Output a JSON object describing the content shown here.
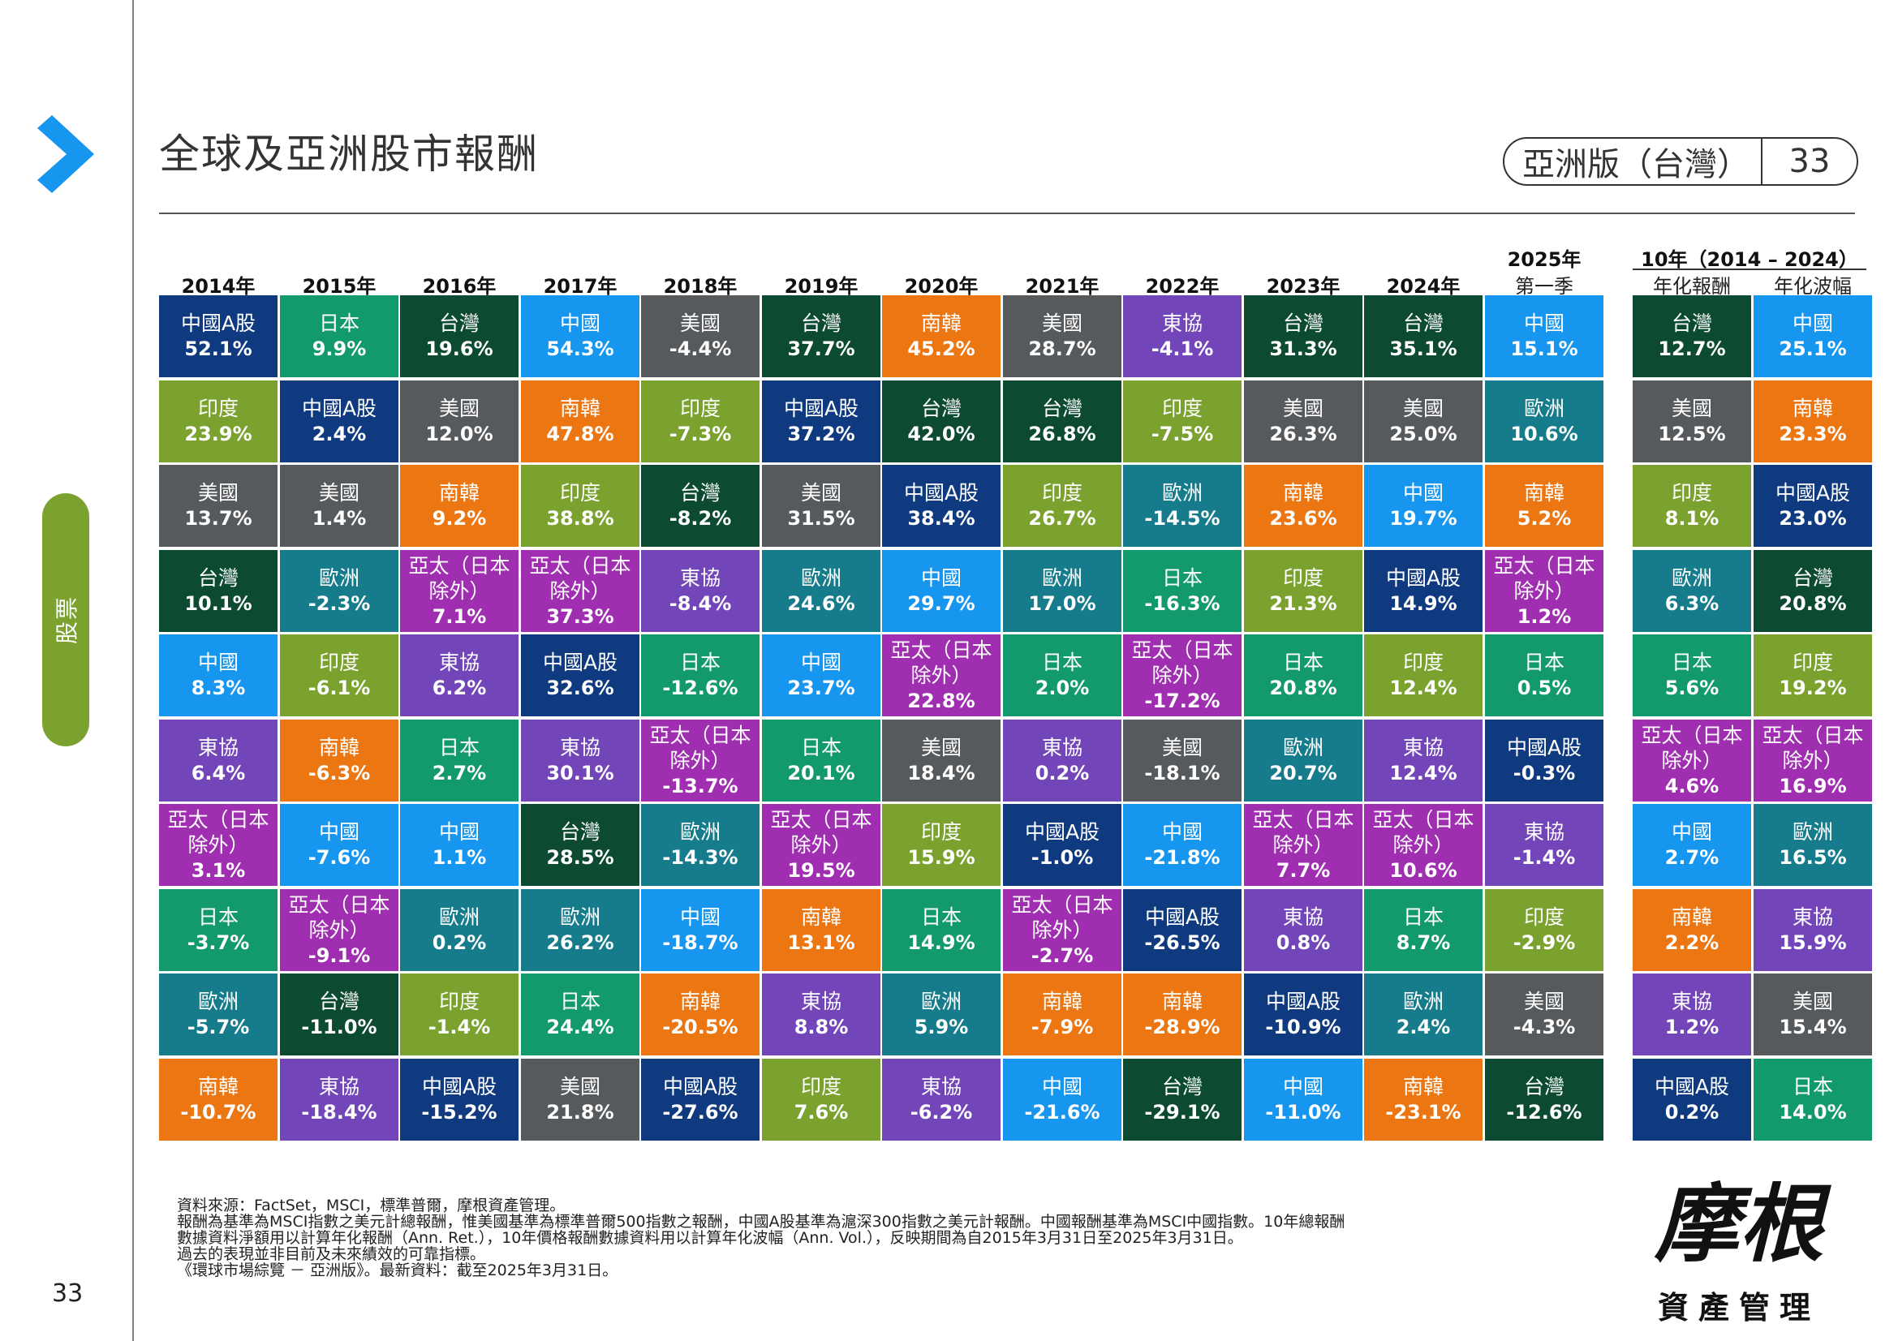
{
  "page": {
    "title": "全球及亞洲股市報酬",
    "edition": "亞洲版（台灣）",
    "page_number": "33",
    "section": "股票"
  },
  "brand": {
    "logo_name": "摩根",
    "logo_sub": "資產管理"
  },
  "footnotes": [
    "資料來源：FactSet，MSCI，標準普爾，摩根資產管理。",
    "報酬為基準為MSCI指數之美元計總報酬，惟美國基準為標準普爾500指數之報酬，中國A股基準為滬深300指數之美元計報酬。中國報酬基準為MSCI中國指數。10年總報酬",
    "數據資料淨額用以計算年化報酬（Ann. Ret.），10年價格報酬數據資料用以計算年化波幅（Ann. Vol.），反映期間為自2015年3月31日至2025年3月31日。",
    "過去的表現並非目前及未來績效的可靠指標。",
    "《環球市場綜覽 － 亞洲版》。最新資料：截至2025年3月31日。"
  ],
  "colors": {
    "中國A股": "#0f3a80",
    "日本": "#139a6c",
    "台灣": "#0c4a32",
    "中國": "#1796f0",
    "美國": "#575a5d",
    "南韓": "#ec7712",
    "東協": "#7245b8",
    "印度": "#7ba22f",
    "歐洲": "#167c8c",
    "亞太（日本除外）": "#a02eb0"
  },
  "chart_data": {
    "type": "table",
    "title": "全球及亞洲股市報酬",
    "columns": [
      {
        "label": "2014年",
        "cells": [
          {
            "market": "中國A股",
            "value": "52.1%"
          },
          {
            "market": "印度",
            "value": "23.9%"
          },
          {
            "market": "美國",
            "value": "13.7%"
          },
          {
            "market": "台灣",
            "value": "10.1%"
          },
          {
            "market": "中國",
            "value": "8.3%"
          },
          {
            "market": "東協",
            "value": "6.4%"
          },
          {
            "market": "亞太（日本除外）",
            "value": "3.1%"
          },
          {
            "market": "日本",
            "value": "-3.7%"
          },
          {
            "market": "歐洲",
            "value": "-5.7%"
          },
          {
            "market": "南韓",
            "value": "-10.7%"
          }
        ]
      },
      {
        "label": "2015年",
        "cells": [
          {
            "market": "日本",
            "value": "9.9%"
          },
          {
            "market": "中國A股",
            "value": "2.4%"
          },
          {
            "market": "美國",
            "value": "1.4%"
          },
          {
            "market": "歐洲",
            "value": "-2.3%"
          },
          {
            "market": "印度",
            "value": "-6.1%"
          },
          {
            "market": "南韓",
            "value": "-6.3%"
          },
          {
            "market": "中國",
            "value": "-7.6%"
          },
          {
            "market": "亞太（日本除外）",
            "value": "-9.1%"
          },
          {
            "market": "台灣",
            "value": "-11.0%"
          },
          {
            "market": "東協",
            "value": "-18.4%"
          }
        ]
      },
      {
        "label": "2016年",
        "cells": [
          {
            "market": "台灣",
            "value": "19.6%"
          },
          {
            "market": "美國",
            "value": "12.0%"
          },
          {
            "market": "南韓",
            "value": "9.2%"
          },
          {
            "market": "亞太（日本除外）",
            "value": "7.1%"
          },
          {
            "market": "東協",
            "value": "6.2%"
          },
          {
            "market": "日本",
            "value": "2.7%"
          },
          {
            "market": "中國",
            "value": "1.1%"
          },
          {
            "market": "歐洲",
            "value": "0.2%"
          },
          {
            "market": "印度",
            "value": "-1.4%"
          },
          {
            "market": "中國A股",
            "value": "-15.2%"
          }
        ]
      },
      {
        "label": "2017年",
        "cells": [
          {
            "market": "中國",
            "value": "54.3%"
          },
          {
            "market": "南韓",
            "value": "47.8%"
          },
          {
            "market": "印度",
            "value": "38.8%"
          },
          {
            "market": "亞太（日本除外）",
            "value": "37.3%"
          },
          {
            "market": "中國A股",
            "value": "32.6%"
          },
          {
            "market": "東協",
            "value": "30.1%"
          },
          {
            "market": "台灣",
            "value": "28.5%"
          },
          {
            "market": "歐洲",
            "value": "26.2%"
          },
          {
            "market": "日本",
            "value": "24.4%"
          },
          {
            "market": "美國",
            "value": "21.8%"
          }
        ]
      },
      {
        "label": "2018年",
        "cells": [
          {
            "market": "美國",
            "value": "-4.4%"
          },
          {
            "market": "印度",
            "value": "-7.3%"
          },
          {
            "market": "台灣",
            "value": "-8.2%"
          },
          {
            "market": "東協",
            "value": "-8.4%"
          },
          {
            "market": "日本",
            "value": "-12.6%"
          },
          {
            "market": "亞太（日本除外）",
            "value": "-13.7%"
          },
          {
            "market": "歐洲",
            "value": "-14.3%"
          },
          {
            "market": "中國",
            "value": "-18.7%"
          },
          {
            "market": "南韓",
            "value": "-20.5%"
          },
          {
            "market": "中國A股",
            "value": "-27.6%"
          }
        ]
      },
      {
        "label": "2019年",
        "cells": [
          {
            "market": "台灣",
            "value": "37.7%"
          },
          {
            "market": "中國A股",
            "value": "37.2%"
          },
          {
            "market": "美國",
            "value": "31.5%"
          },
          {
            "market": "歐洲",
            "value": "24.6%"
          },
          {
            "market": "中國",
            "value": "23.7%"
          },
          {
            "market": "日本",
            "value": "20.1%"
          },
          {
            "market": "亞太（日本除外）",
            "value": "19.5%"
          },
          {
            "market": "南韓",
            "value": "13.1%"
          },
          {
            "market": "東協",
            "value": "8.8%"
          },
          {
            "market": "印度",
            "value": "7.6%"
          }
        ]
      },
      {
        "label": "2020年",
        "cells": [
          {
            "market": "南韓",
            "value": "45.2%"
          },
          {
            "market": "台灣",
            "value": "42.0%"
          },
          {
            "market": "中國A股",
            "value": "38.4%"
          },
          {
            "market": "中國",
            "value": "29.7%"
          },
          {
            "market": "亞太（日本除外）",
            "value": "22.8%"
          },
          {
            "market": "美國",
            "value": "18.4%"
          },
          {
            "market": "印度",
            "value": "15.9%"
          },
          {
            "market": "日本",
            "value": "14.9%"
          },
          {
            "market": "歐洲",
            "value": "5.9%"
          },
          {
            "market": "東協",
            "value": "-6.2%"
          }
        ]
      },
      {
        "label": "2021年",
        "cells": [
          {
            "market": "美國",
            "value": "28.7%"
          },
          {
            "market": "台灣",
            "value": "26.8%"
          },
          {
            "market": "印度",
            "value": "26.7%"
          },
          {
            "market": "歐洲",
            "value": "17.0%"
          },
          {
            "market": "日本",
            "value": "2.0%"
          },
          {
            "market": "東協",
            "value": "0.2%"
          },
          {
            "market": "中國A股",
            "value": "-1.0%"
          },
          {
            "market": "亞太（日本除外）",
            "value": "-2.7%"
          },
          {
            "market": "南韓",
            "value": "-7.9%"
          },
          {
            "market": "中國",
            "value": "-21.6%"
          }
        ]
      },
      {
        "label": "2022年",
        "cells": [
          {
            "market": "東協",
            "value": "-4.1%"
          },
          {
            "market": "印度",
            "value": "-7.5%"
          },
          {
            "market": "歐洲",
            "value": "-14.5%"
          },
          {
            "market": "日本",
            "value": "-16.3%"
          },
          {
            "market": "亞太（日本除外）",
            "value": "-17.2%"
          },
          {
            "market": "美國",
            "value": "-18.1%"
          },
          {
            "market": "中國",
            "value": "-21.8%"
          },
          {
            "market": "中國A股",
            "value": "-26.5%"
          },
          {
            "market": "南韓",
            "value": "-28.9%"
          },
          {
            "market": "台灣",
            "value": "-29.1%"
          }
        ]
      },
      {
        "label": "2023年",
        "cells": [
          {
            "market": "台灣",
            "value": "31.3%"
          },
          {
            "market": "美國",
            "value": "26.3%"
          },
          {
            "market": "南韓",
            "value": "23.6%"
          },
          {
            "market": "印度",
            "value": "21.3%"
          },
          {
            "market": "日本",
            "value": "20.8%"
          },
          {
            "market": "歐洲",
            "value": "20.7%"
          },
          {
            "market": "亞太（日本除外）",
            "value": "7.7%"
          },
          {
            "market": "東協",
            "value": "0.8%"
          },
          {
            "market": "中國A股",
            "value": "-10.9%"
          },
          {
            "market": "中國",
            "value": "-11.0%"
          }
        ]
      },
      {
        "label": "2024年",
        "cells": [
          {
            "market": "台灣",
            "value": "35.1%"
          },
          {
            "market": "美國",
            "value": "25.0%"
          },
          {
            "market": "中國",
            "value": "19.7%"
          },
          {
            "market": "中國A股",
            "value": "14.9%"
          },
          {
            "market": "印度",
            "value": "12.4%"
          },
          {
            "market": "東協",
            "value": "12.4%"
          },
          {
            "market": "亞太（日本除外）",
            "value": "10.6%"
          },
          {
            "market": "日本",
            "value": "8.7%"
          },
          {
            "market": "歐洲",
            "value": "2.4%"
          },
          {
            "market": "南韓",
            "value": "-23.1%"
          }
        ]
      },
      {
        "label": "2025年",
        "sublabel": "第一季",
        "cells": [
          {
            "market": "中國",
            "value": "15.1%"
          },
          {
            "market": "歐洲",
            "value": "10.6%"
          },
          {
            "market": "南韓",
            "value": "5.2%"
          },
          {
            "market": "亞太（日本除外）",
            "value": "1.2%"
          },
          {
            "market": "日本",
            "value": "0.5%"
          },
          {
            "market": "中國A股",
            "value": "-0.3%"
          },
          {
            "market": "東協",
            "value": "-1.4%"
          },
          {
            "market": "印度",
            "value": "-2.9%"
          },
          {
            "market": "美國",
            "value": "-4.3%"
          },
          {
            "market": "台灣",
            "value": "-12.6%"
          }
        ]
      },
      {
        "label": "年化報酬",
        "group": "10年（2014 – 2024）",
        "cells": [
          {
            "market": "台灣",
            "value": "12.7%"
          },
          {
            "market": "美國",
            "value": "12.5%"
          },
          {
            "market": "印度",
            "value": "8.1%"
          },
          {
            "market": "歐洲",
            "value": "6.3%"
          },
          {
            "market": "日本",
            "value": "5.6%"
          },
          {
            "market": "亞太（日本除外）",
            "value": "4.6%"
          },
          {
            "market": "中國",
            "value": "2.7%"
          },
          {
            "market": "南韓",
            "value": "2.2%"
          },
          {
            "market": "東協",
            "value": "1.2%"
          },
          {
            "market": "中國A股",
            "value": "0.2%"
          }
        ]
      },
      {
        "label": "年化波幅",
        "group": "10年（2014 – 2024）",
        "cells": [
          {
            "market": "中國",
            "value": "25.1%"
          },
          {
            "market": "南韓",
            "value": "23.3%"
          },
          {
            "market": "中國A股",
            "value": "23.0%"
          },
          {
            "market": "台灣",
            "value": "20.8%"
          },
          {
            "market": "印度",
            "value": "19.2%"
          },
          {
            "market": "亞太（日本除外）",
            "value": "16.9%"
          },
          {
            "market": "歐洲",
            "value": "16.5%"
          },
          {
            "market": "東協",
            "value": "15.9%"
          },
          {
            "market": "美國",
            "value": "15.4%"
          },
          {
            "market": "日本",
            "value": "14.0%"
          }
        ]
      }
    ]
  }
}
